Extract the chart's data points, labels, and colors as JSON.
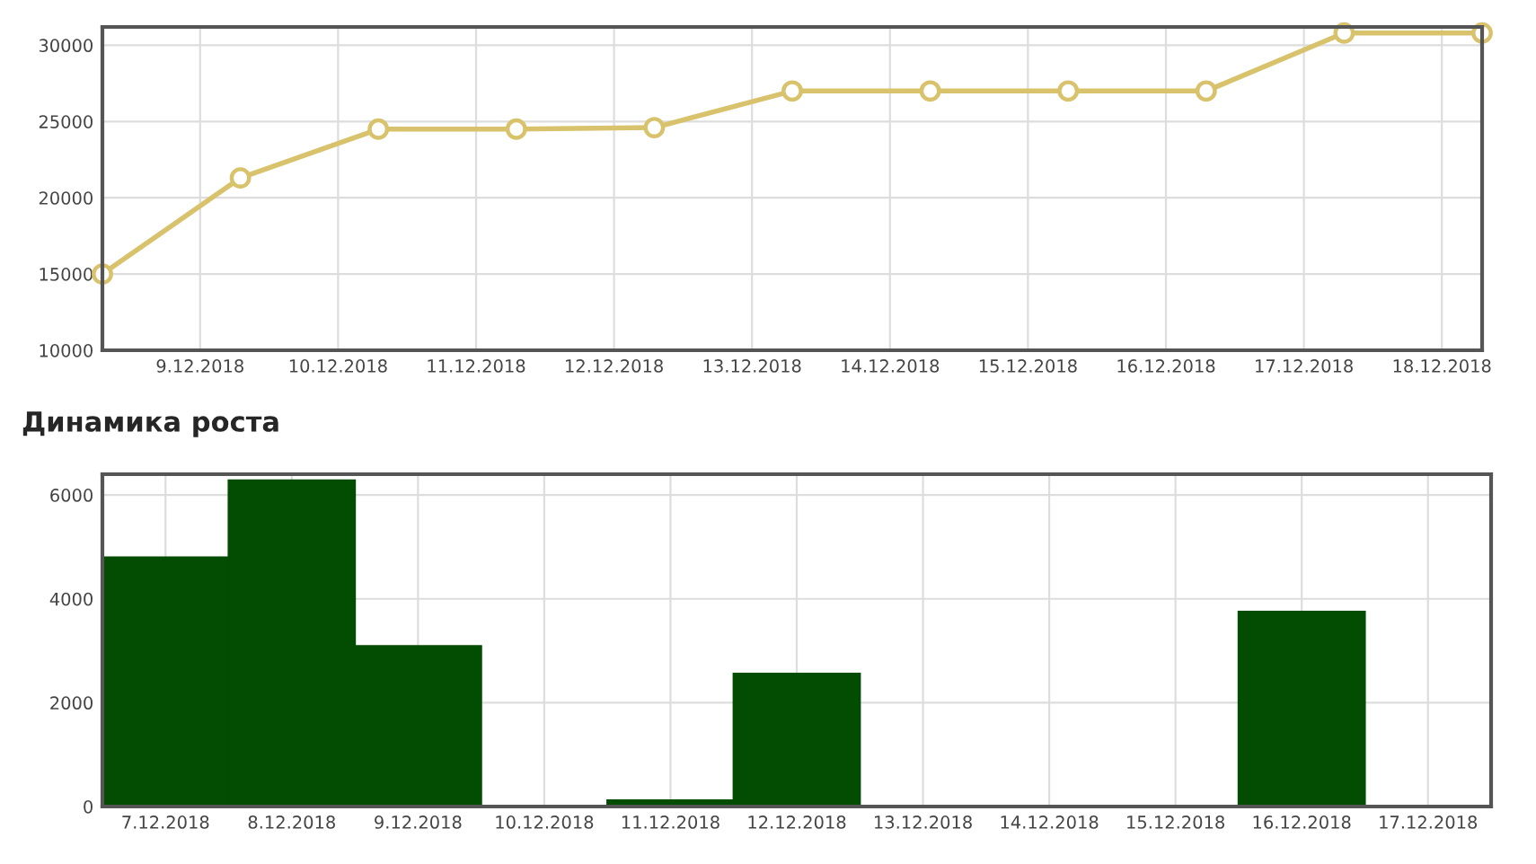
{
  "chart_data": [
    {
      "type": "line",
      "x": [
        "2018-12-08T07:00",
        "2018-12-09T07:00",
        "2018-12-10T07:00",
        "2018-12-11T07:00",
        "2018-12-12T07:00",
        "2018-12-13T07:00",
        "2018-12-14T07:00",
        "2018-12-15T07:00",
        "2018-12-16T07:00",
        "2018-12-17T07:00",
        "2018-12-18T07:00"
      ],
      "series": [
        {
          "color": "#d8c36c",
          "values": [
            15000,
            21300,
            24500,
            24500,
            24600,
            27000,
            27000,
            27000,
            27000,
            30800,
            30800
          ]
        }
      ],
      "xlim": [
        "2018-12-08T07:00",
        "2018-12-18T07:00"
      ],
      "xticks": [
        {
          "value": "2018-12-09",
          "label": "9.12.2018"
        },
        {
          "value": "2018-12-10",
          "label": "10.12.2018"
        },
        {
          "value": "2018-12-11",
          "label": "11.12.2018"
        },
        {
          "value": "2018-12-12",
          "label": "12.12.2018"
        },
        {
          "value": "2018-12-13",
          "label": "13.12.2018"
        },
        {
          "value": "2018-12-14",
          "label": "14.12.2018"
        },
        {
          "value": "2018-12-15",
          "label": "15.12.2018"
        },
        {
          "value": "2018-12-16",
          "label": "16.12.2018"
        },
        {
          "value": "2018-12-17",
          "label": "17.12.2018"
        },
        {
          "value": "2018-12-18",
          "label": "18.12.2018"
        }
      ],
      "ylim": [
        10000,
        31200
      ],
      "yticks": [
        10000,
        15000,
        20000,
        25000,
        30000
      ],
      "grid": true,
      "marker": "circle",
      "line_style": "solid"
    },
    {
      "type": "bar",
      "title": "Динамика роста",
      "categories": [
        "7.12.2018",
        "8.12.2018",
        "9.12.2018",
        "10.12.2018",
        "11.12.2018",
        "12.12.2018",
        "13.12.2018",
        "14.12.2018",
        "15.12.2018",
        "16.12.2018",
        "17.12.2018"
      ],
      "series": [
        {
          "color": "#034d03",
          "values": [
            4800,
            6280,
            3090,
            0,
            120,
            2560,
            0,
            0,
            0,
            3750,
            0
          ]
        }
      ],
      "ylim": [
        0,
        6400
      ],
      "yticks": [
        0,
        2000,
        4000,
        6000
      ],
      "grid": true
    }
  ]
}
